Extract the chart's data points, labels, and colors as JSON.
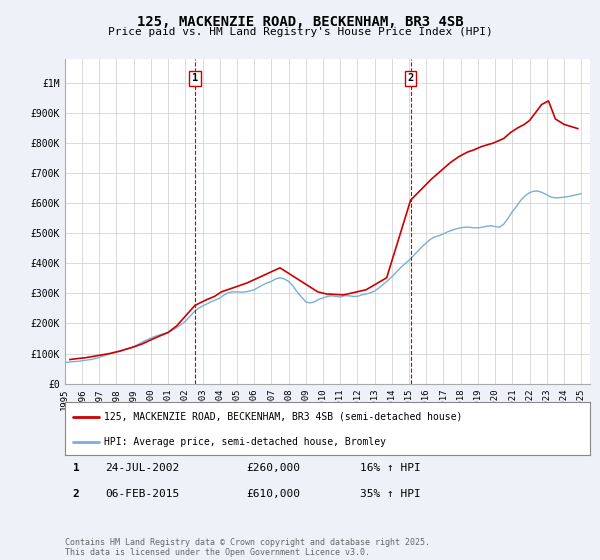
{
  "title": "125, MACKENZIE ROAD, BECKENHAM, BR3 4SB",
  "subtitle": "Price paid vs. HM Land Registry's House Price Index (HPI)",
  "yticks": [
    0,
    100000,
    200000,
    300000,
    400000,
    500000,
    600000,
    700000,
    800000,
    900000,
    1000000
  ],
  "ytick_labels": [
    "£0",
    "£100K",
    "£200K",
    "£300K",
    "£400K",
    "£500K",
    "£600K",
    "£700K",
    "£800K",
    "£900K",
    "£1M"
  ],
  "xlim_start": 1995.0,
  "xlim_end": 2025.5,
  "ylim": [
    0,
    1080000
  ],
  "background_color": "#eef2f8",
  "plot_bg_color": "#ffffff",
  "red_color": "#cc0000",
  "blue_color": "#7ab0d4",
  "marker1_x": 2002.56,
  "marker2_x": 2015.09,
  "legend_label1": "125, MACKENZIE ROAD, BECKENHAM, BR3 4SB (semi-detached house)",
  "legend_label2": "HPI: Average price, semi-detached house, Bromley",
  "footer": "Contains HM Land Registry data © Crown copyright and database right 2025.\nThis data is licensed under the Open Government Licence v3.0.",
  "hpi_data": {
    "years": [
      1995.0,
      1995.25,
      1995.5,
      1995.75,
      1996.0,
      1996.25,
      1996.5,
      1996.75,
      1997.0,
      1997.25,
      1997.5,
      1997.75,
      1998.0,
      1998.25,
      1998.5,
      1998.75,
      1999.0,
      1999.25,
      1999.5,
      1999.75,
      2000.0,
      2000.25,
      2000.5,
      2000.75,
      2001.0,
      2001.25,
      2001.5,
      2001.75,
      2002.0,
      2002.25,
      2002.5,
      2002.75,
      2003.0,
      2003.25,
      2003.5,
      2003.75,
      2004.0,
      2004.25,
      2004.5,
      2004.75,
      2005.0,
      2005.25,
      2005.5,
      2005.75,
      2006.0,
      2006.25,
      2006.5,
      2006.75,
      2007.0,
      2007.25,
      2007.5,
      2007.75,
      2008.0,
      2008.25,
      2008.5,
      2008.75,
      2009.0,
      2009.25,
      2009.5,
      2009.75,
      2010.0,
      2010.25,
      2010.5,
      2010.75,
      2011.0,
      2011.25,
      2011.5,
      2011.75,
      2012.0,
      2012.25,
      2012.5,
      2012.75,
      2013.0,
      2013.25,
      2013.5,
      2013.75,
      2014.0,
      2014.25,
      2014.5,
      2014.75,
      2015.0,
      2015.25,
      2015.5,
      2015.75,
      2016.0,
      2016.25,
      2016.5,
      2016.75,
      2017.0,
      2017.25,
      2017.5,
      2017.75,
      2018.0,
      2018.25,
      2018.5,
      2018.75,
      2019.0,
      2019.25,
      2019.5,
      2019.75,
      2020.0,
      2020.25,
      2020.5,
      2020.75,
      2021.0,
      2021.25,
      2021.5,
      2021.75,
      2022.0,
      2022.25,
      2022.5,
      2022.75,
      2023.0,
      2023.25,
      2023.5,
      2023.75,
      2024.0,
      2024.25,
      2024.5,
      2024.75,
      2025.0
    ],
    "values": [
      70000,
      72000,
      73000,
      74000,
      76000,
      78000,
      80000,
      83000,
      87000,
      92000,
      97000,
      101000,
      105000,
      109000,
      114000,
      118000,
      122000,
      130000,
      138000,
      145000,
      151000,
      157000,
      162000,
      166000,
      170000,
      178000,
      186000,
      196000,
      207000,
      222000,
      238000,
      250000,
      258000,
      265000,
      272000,
      278000,
      284000,
      295000,
      302000,
      305000,
      305000,
      304000,
      305000,
      308000,
      312000,
      320000,
      328000,
      335000,
      340000,
      348000,
      352000,
      348000,
      340000,
      325000,
      305000,
      288000,
      272000,
      268000,
      272000,
      280000,
      285000,
      290000,
      292000,
      290000,
      288000,
      292000,
      292000,
      290000,
      290000,
      295000,
      298000,
      302000,
      308000,
      318000,
      330000,
      342000,
      355000,
      370000,
      385000,
      398000,
      410000,
      425000,
      440000,
      455000,
      468000,
      480000,
      488000,
      492000,
      498000,
      505000,
      510000,
      515000,
      518000,
      520000,
      520000,
      518000,
      518000,
      520000,
      523000,
      525000,
      522000,
      520000,
      530000,
      550000,
      572000,
      590000,
      610000,
      625000,
      635000,
      640000,
      640000,
      635000,
      628000,
      620000,
      618000,
      618000,
      620000,
      622000,
      625000,
      628000,
      632000
    ]
  },
  "price_data": {
    "years": [
      1995.3,
      1995.7,
      1996.2,
      1996.6,
      1997.1,
      1997.6,
      1998.2,
      1998.6,
      1999.0,
      1999.5,
      2000.1,
      2000.5,
      2001.0,
      2001.5,
      2002.56,
      2003.2,
      2003.7,
      2004.1,
      2005.6,
      2007.5,
      2009.7,
      2010.2,
      2011.2,
      2012.5,
      2013.7,
      2015.09,
      2016.3,
      2016.8,
      2017.4,
      2017.9,
      2018.4,
      2018.8,
      2019.2,
      2019.6,
      2019.9,
      2020.5,
      2020.9,
      2021.3,
      2021.7,
      2022.0,
      2022.4,
      2022.7,
      2023.1,
      2023.5,
      2024.0,
      2024.4,
      2024.8
    ],
    "values": [
      80000,
      83000,
      86000,
      90000,
      95000,
      100000,
      108000,
      115000,
      122000,
      132000,
      148000,
      158000,
      170000,
      192000,
      260000,
      278000,
      290000,
      305000,
      335000,
      385000,
      305000,
      298000,
      295000,
      312000,
      352000,
      610000,
      680000,
      705000,
      735000,
      755000,
      770000,
      778000,
      788000,
      795000,
      800000,
      815000,
      835000,
      850000,
      862000,
      875000,
      905000,
      928000,
      940000,
      880000,
      862000,
      855000,
      848000
    ]
  }
}
